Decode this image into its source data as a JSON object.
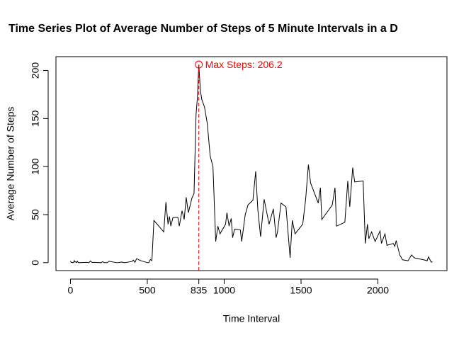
{
  "chart_data": {
    "type": "line",
    "title": "Time Series Plot of Average Number of Steps of 5 Minute Intervals in a D",
    "xlabel": "Time Interval",
    "ylabel": "Average Number of Steps",
    "x": [
      0,
      5,
      10,
      15,
      20,
      25,
      30,
      35,
      40,
      45,
      50,
      55,
      100,
      110,
      120,
      130,
      140,
      150,
      200,
      210,
      220,
      230,
      240,
      250,
      300,
      310,
      320,
      330,
      340,
      350,
      400,
      410,
      420,
      430,
      440,
      450,
      500,
      510,
      520,
      530,
      543,
      607,
      621,
      635,
      644,
      653,
      667,
      699,
      708,
      726,
      740,
      753,
      767,
      790,
      804,
      817,
      826,
      835,
      845,
      854,
      872,
      890,
      909,
      927,
      945,
      959,
      973,
      1009,
      1018,
      1032,
      1046,
      1055,
      1068,
      1105,
      1114,
      1137,
      1155,
      1187,
      1205,
      1219,
      1237,
      1260,
      1292,
      1320,
      1338,
      1347,
      1370,
      1402,
      1429,
      1443,
      1461,
      1511,
      1530,
      1548,
      1562,
      1612,
      1626,
      1635,
      1658,
      1703,
      1721,
      1731,
      1785,
      1804,
      1817,
      1836,
      1849,
      1904,
      1918,
      1932,
      1941,
      1959,
      1982,
      2014,
      2023,
      2046,
      2059,
      2100,
      2110,
      2119,
      2142,
      2160,
      2196,
      2219,
      2237,
      2297,
      2320,
      2329,
      2347,
      2355
    ],
    "series": [
      {
        "name": "Average Number of Steps",
        "color": "#000000",
        "values": [
          1.7,
          0.3,
          0.1,
          0.2,
          0.1,
          2.1,
          0.5,
          0.9,
          0,
          1.5,
          0.3,
          0,
          0.3,
          0.2,
          0,
          1.8,
          0.2,
          0.3,
          0,
          1.1,
          0,
          0,
          0,
          1.5,
          0,
          0,
          0.2,
          0.6,
          0.5,
          0,
          1.2,
          2.6,
          0.3,
          4.1,
          3.5,
          2.5,
          0,
          0,
          3.3,
          2.1,
          44,
          32,
          63,
          40,
          48,
          38,
          47,
          47,
          38,
          54,
          45,
          68,
          52,
          67,
          72,
          154,
          172,
          206.2,
          180,
          170,
          162,
          145,
          111,
          100,
          22,
          38,
          30,
          40,
          52,
          38,
          46,
          26,
          35,
          34,
          22,
          50,
          60,
          65,
          95,
          55,
          27,
          66,
          40,
          56,
          26,
          32,
          62,
          58,
          5,
          44,
          30,
          40,
          66,
          102,
          83,
          62,
          78,
          45,
          50,
          60,
          78,
          38,
          42,
          85,
          58,
          99,
          84,
          85,
          20,
          40,
          25,
          32,
          22,
          33,
          20,
          30,
          18,
          20,
          17,
          23,
          8,
          3,
          2,
          8,
          5,
          3,
          2,
          6,
          0.5,
          1
        ]
      }
    ],
    "xlim": [
      -94.2,
      2449.2
    ],
    "ylim": [
      -8.25,
      214.4
    ],
    "xticks": [
      0,
      500,
      835,
      1000,
      1500,
      2000
    ],
    "yticks": [
      0,
      50,
      100,
      150,
      200
    ],
    "annotation": {
      "x": 835,
      "y": 206.2,
      "label": "Max Steps: 206.2",
      "color": "#ff0000"
    }
  }
}
